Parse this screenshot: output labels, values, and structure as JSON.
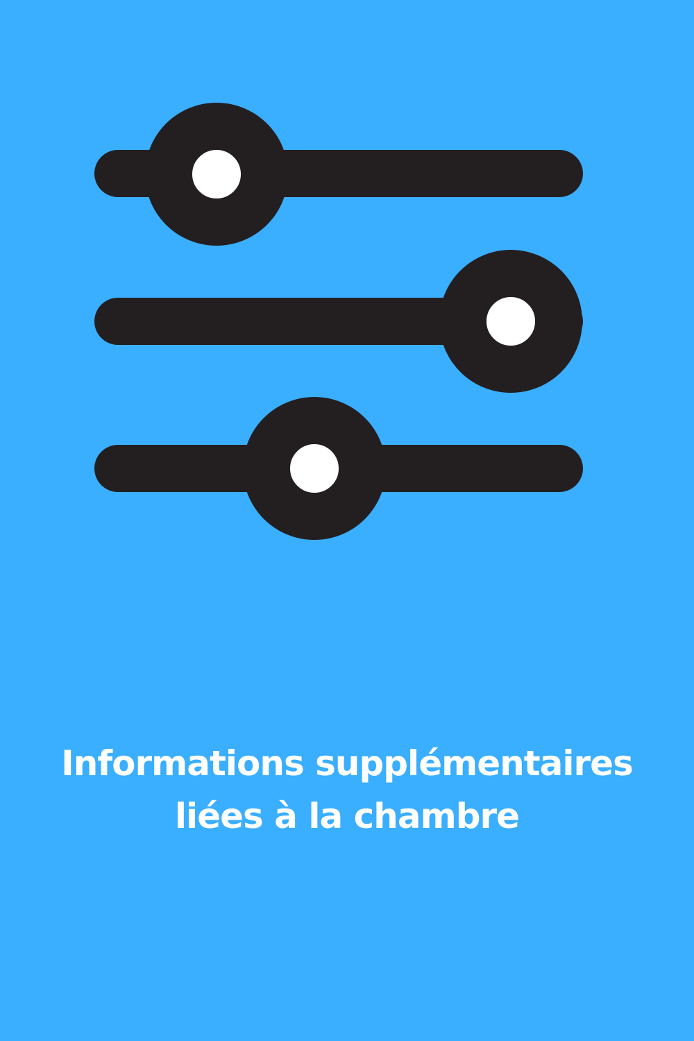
{
  "tile": {
    "background_color": "#3aaeff",
    "icon": "sliders-settings-icon",
    "icon_color": "#231f20",
    "caption_color": "#ffffff",
    "caption_line_1": "Informations supplémentaires",
    "caption_line_2": "liées à la chambre"
  }
}
